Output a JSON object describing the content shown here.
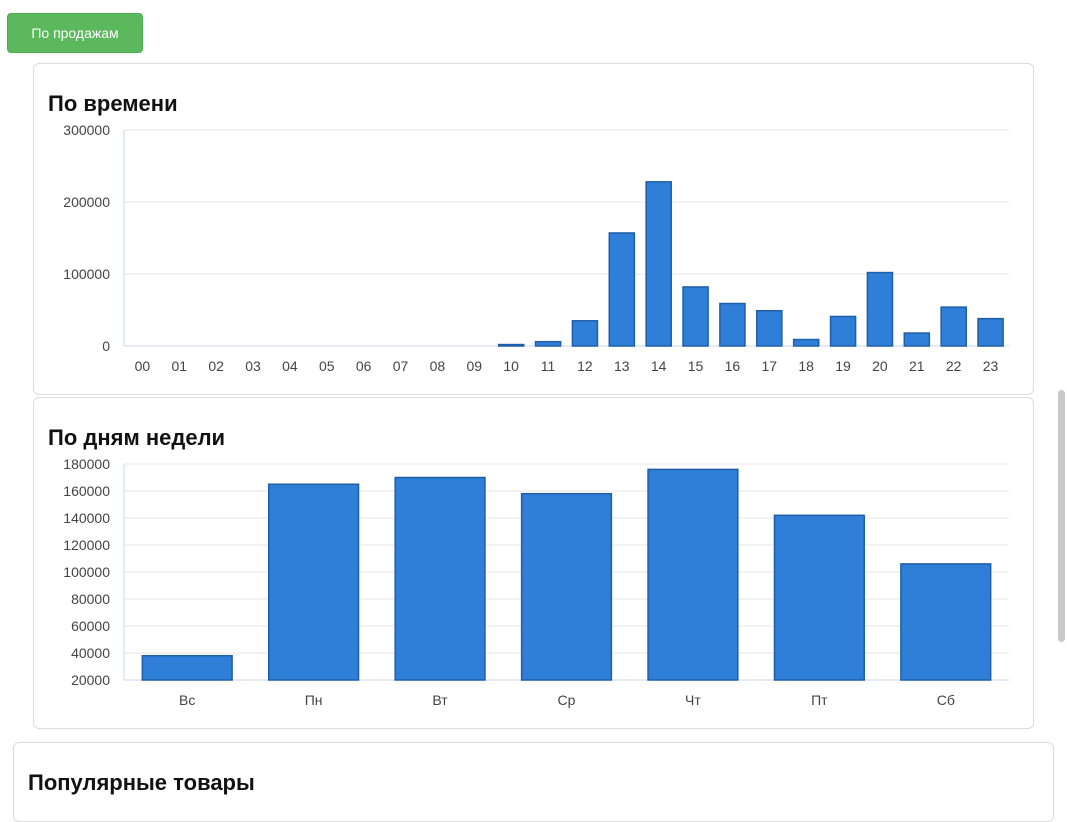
{
  "toolbar": {
    "sales_button_label": "По продажам"
  },
  "colors": {
    "bar_fill": "#2f7ed8",
    "bar_stroke": "#1f5ea8",
    "button_green": "#5cb85c"
  },
  "chart_data": [
    {
      "type": "bar",
      "title": "По времени",
      "categories": [
        "00",
        "01",
        "02",
        "03",
        "04",
        "05",
        "06",
        "07",
        "08",
        "09",
        "10",
        "11",
        "12",
        "13",
        "14",
        "15",
        "16",
        "17",
        "18",
        "19",
        "20",
        "21",
        "22",
        "23"
      ],
      "values": [
        0,
        0,
        0,
        0,
        0,
        0,
        0,
        0,
        0,
        0,
        2000,
        6000,
        35000,
        157000,
        228000,
        82000,
        59000,
        49000,
        9000,
        41000,
        102000,
        18000,
        54000,
        38000
      ],
      "ylim": [
        0,
        300000
      ],
      "yticks": [
        0,
        100000,
        200000,
        300000
      ],
      "grid": true
    },
    {
      "type": "bar",
      "title": "По дням недели",
      "categories": [
        "Вс",
        "Пн",
        "Вт",
        "Ср",
        "Чт",
        "Пт",
        "Сб"
      ],
      "values": [
        38000,
        165000,
        170000,
        158000,
        176000,
        142000,
        106000
      ],
      "ylim": [
        20000,
        180000
      ],
      "yticks": [
        20000,
        40000,
        60000,
        80000,
        100000,
        120000,
        140000,
        160000,
        180000
      ],
      "grid": true
    }
  ],
  "popular": {
    "title": "Популярные товары"
  }
}
